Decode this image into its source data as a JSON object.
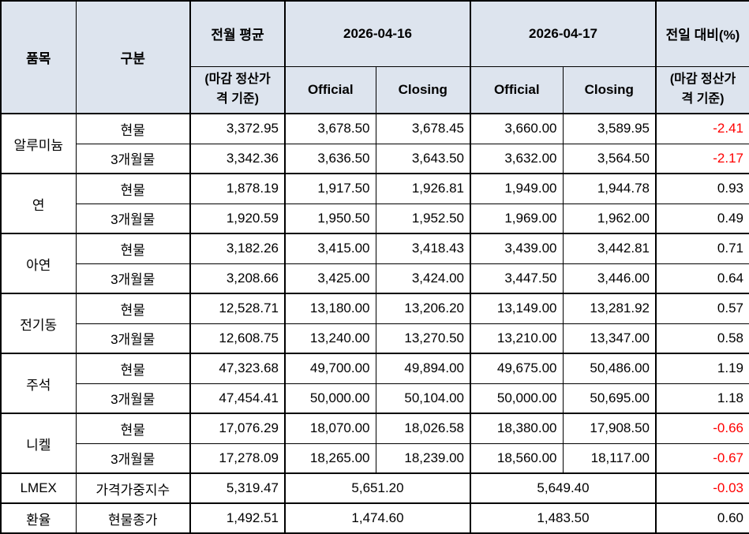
{
  "colors": {
    "header_bg": "#dde4ee",
    "negative": "#ff0000",
    "border": "#000000",
    "text": "#000000",
    "row_bg": "#ffffff"
  },
  "table": {
    "header": {
      "item": "품목",
      "type": "구분",
      "prev_avg": "전월 평균",
      "prev_avg_note": "(마감 정산가\n격 기준)",
      "date1": "2026-04-16",
      "date2": "2026-04-17",
      "official": "Official",
      "closing": "Closing",
      "change": "전일 대비(%)",
      "change_note": "(마감 정산가\n격 기준)"
    },
    "groups": [
      {
        "item": "알루미늄",
        "rows": [
          {
            "type": "현물",
            "prev_avg": "3,372.95",
            "d1_official": "3,678.50",
            "d1_closing": "3,678.45",
            "d2_official": "3,660.00",
            "d2_closing": "3,589.95",
            "change": "-2.41"
          },
          {
            "type": "3개월물",
            "prev_avg": "3,342.36",
            "d1_official": "3,636.50",
            "d1_closing": "3,643.50",
            "d2_official": "3,632.00",
            "d2_closing": "3,564.50",
            "change": "-2.17"
          }
        ]
      },
      {
        "item": "연",
        "rows": [
          {
            "type": "현물",
            "prev_avg": "1,878.19",
            "d1_official": "1,917.50",
            "d1_closing": "1,926.81",
            "d2_official": "1,949.00",
            "d2_closing": "1,944.78",
            "change": "0.93"
          },
          {
            "type": "3개월물",
            "prev_avg": "1,920.59",
            "d1_official": "1,950.50",
            "d1_closing": "1,952.50",
            "d2_official": "1,969.00",
            "d2_closing": "1,962.00",
            "change": "0.49"
          }
        ]
      },
      {
        "item": "아연",
        "rows": [
          {
            "type": "현물",
            "prev_avg": "3,182.26",
            "d1_official": "3,415.00",
            "d1_closing": "3,418.43",
            "d2_official": "3,439.00",
            "d2_closing": "3,442.81",
            "change": "0.71"
          },
          {
            "type": "3개월물",
            "prev_avg": "3,208.66",
            "d1_official": "3,425.00",
            "d1_closing": "3,424.00",
            "d2_official": "3,447.50",
            "d2_closing": "3,446.00",
            "change": "0.64"
          }
        ]
      },
      {
        "item": "전기동",
        "rows": [
          {
            "type": "현물",
            "prev_avg": "12,528.71",
            "d1_official": "13,180.00",
            "d1_closing": "13,206.20",
            "d2_official": "13,149.00",
            "d2_closing": "13,281.92",
            "change": "0.57"
          },
          {
            "type": "3개월물",
            "prev_avg": "12,608.75",
            "d1_official": "13,240.00",
            "d1_closing": "13,270.50",
            "d2_official": "13,210.00",
            "d2_closing": "13,347.00",
            "change": "0.58"
          }
        ]
      },
      {
        "item": "주석",
        "rows": [
          {
            "type": "현물",
            "prev_avg": "47,323.68",
            "d1_official": "49,700.00",
            "d1_closing": "49,894.00",
            "d2_official": "49,675.00",
            "d2_closing": "50,486.00",
            "change": "1.19"
          },
          {
            "type": "3개월물",
            "prev_avg": "47,454.41",
            "d1_official": "50,000.00",
            "d1_closing": "50,104.00",
            "d2_official": "50,000.00",
            "d2_closing": "50,695.00",
            "change": "1.18"
          }
        ]
      },
      {
        "item": "니켈",
        "rows": [
          {
            "type": "현물",
            "prev_avg": "17,076.29",
            "d1_official": "18,070.00",
            "d1_closing": "18,026.58",
            "d2_official": "18,380.00",
            "d2_closing": "17,908.50",
            "change": "-0.66"
          },
          {
            "type": "3개월물",
            "prev_avg": "17,278.09",
            "d1_official": "18,265.00",
            "d1_closing": "18,239.00",
            "d2_official": "18,560.00",
            "d2_closing": "18,117.00",
            "change": "-0.67"
          }
        ]
      }
    ],
    "summary": [
      {
        "item": "LMEX",
        "type": "가격가중지수",
        "prev_avg": "5,319.47",
        "d1": "5,651.20",
        "d2": "5,649.40",
        "change": "-0.03"
      },
      {
        "item": "환율",
        "type": "현물종가",
        "prev_avg": "1,492.51",
        "d1": "1,474.60",
        "d2": "1,483.50",
        "change": "0.60"
      }
    ]
  }
}
